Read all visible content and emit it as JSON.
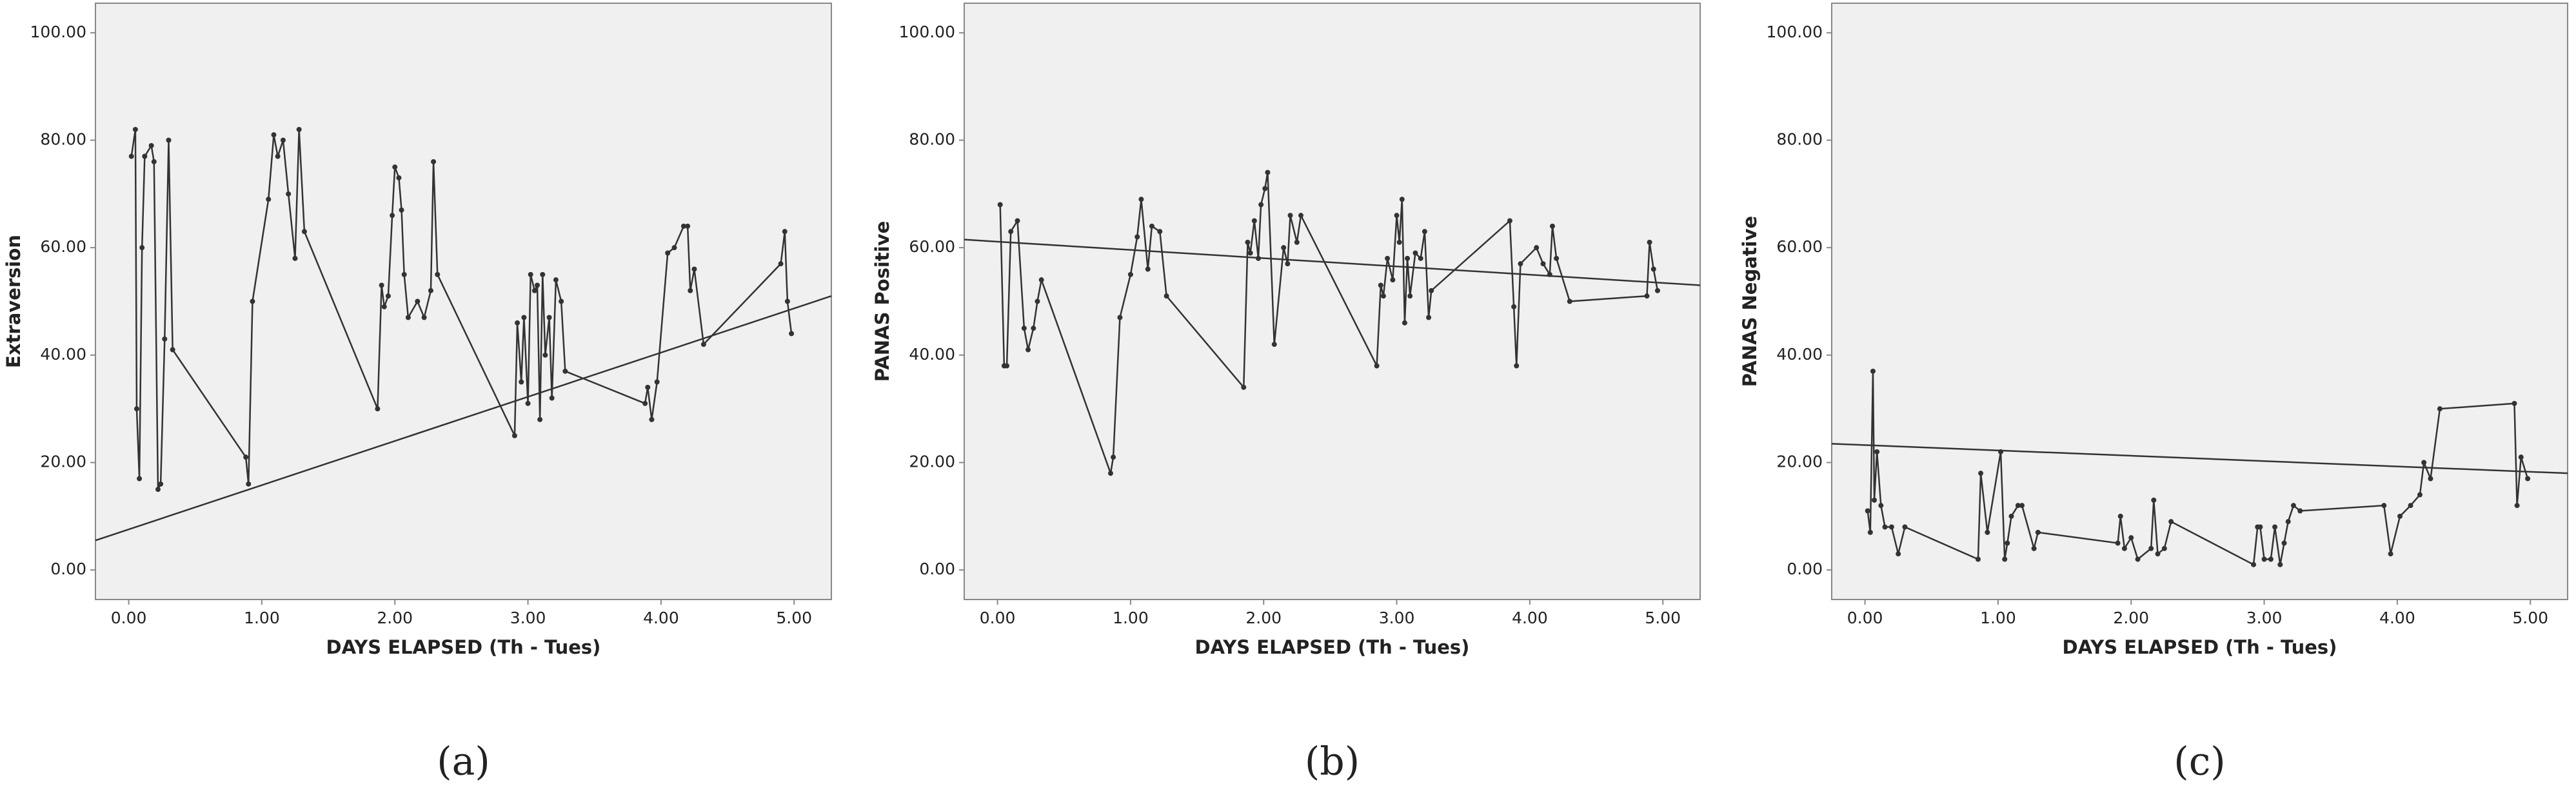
{
  "chart_data": [
    {
      "type": "line",
      "label": "(a)",
      "xlabel": "DAYS ELAPSED (Th - Tues)",
      "ylabel": "Extraversion",
      "xlim": [
        -0.25,
        5.28
      ],
      "ylim": [
        -5.5,
        105.5
      ],
      "xticks": [
        {
          "value": 0,
          "label": "0.00"
        },
        {
          "value": 1,
          "label": "1.00"
        },
        {
          "value": 2,
          "label": "2.00"
        },
        {
          "value": 3,
          "label": "3.00"
        },
        {
          "value": 4,
          "label": "4.00"
        },
        {
          "value": 5,
          "label": "5.00"
        }
      ],
      "yticks": [
        {
          "value": 0,
          "label": "0.00"
        },
        {
          "value": 20,
          "label": "20.00"
        },
        {
          "value": 40,
          "label": "40.00"
        },
        {
          "value": 60,
          "label": "60.00"
        },
        {
          "value": 80,
          "label": "80.00"
        },
        {
          "value": 100,
          "label": "100.00"
        }
      ],
      "color": "#333333",
      "x": [
        0.02,
        0.05,
        0.06,
        0.08,
        0.1,
        0.12,
        0.17,
        0.19,
        0.22,
        0.24,
        0.27,
        0.3,
        0.33,
        0.88,
        0.9,
        0.93,
        1.05,
        1.09,
        1.12,
        1.16,
        1.2,
        1.25,
        1.28,
        1.32,
        1.87,
        1.9,
        1.92,
        1.95,
        1.98,
        2.0,
        2.03,
        2.05,
        2.07,
        2.1,
        2.17,
        2.22,
        2.27,
        2.29,
        2.32,
        2.9,
        2.92,
        2.95,
        2.97,
        3.0,
        3.02,
        3.05,
        3.07,
        3.09,
        3.11,
        3.13,
        3.16,
        3.18,
        3.21,
        3.25,
        3.28,
        3.88,
        3.9,
        3.93,
        3.97,
        4.05,
        4.1,
        4.17,
        4.2,
        4.22,
        4.25,
        4.32,
        4.9,
        4.93,
        4.95,
        4.98
      ],
      "values": [
        77,
        82,
        30,
        17,
        60,
        77,
        79,
        76,
        15,
        16,
        43,
        80,
        41,
        21,
        16,
        50,
        69,
        81,
        77,
        80,
        70,
        58,
        82,
        63,
        30,
        53,
        49,
        51,
        66,
        75,
        73,
        67,
        55,
        47,
        50,
        47,
        52,
        76,
        55,
        25,
        46,
        35,
        47,
        31,
        55,
        52,
        53,
        28,
        55,
        40,
        47,
        32,
        54,
        50,
        37,
        31,
        34,
        28,
        35,
        59,
        60,
        64,
        64,
        52,
        56,
        42,
        57,
        63,
        50,
        44
      ],
      "trend": {
        "x": [
          -0.25,
          5.28
        ],
        "values": [
          5.5,
          51
        ]
      }
    },
    {
      "type": "line",
      "label": "(b)",
      "xlabel": "DAYS ELAPSED (Th - Tues)",
      "ylabel": "PANAS Positive",
      "xlim": [
        -0.25,
        5.28
      ],
      "ylim": [
        -5.5,
        105.5
      ],
      "xticks": [
        {
          "value": 0,
          "label": "0.00"
        },
        {
          "value": 1,
          "label": "1.00"
        },
        {
          "value": 2,
          "label": "2.00"
        },
        {
          "value": 3,
          "label": "3.00"
        },
        {
          "value": 4,
          "label": "4.00"
        },
        {
          "value": 5,
          "label": "5.00"
        }
      ],
      "yticks": [
        {
          "value": 0,
          "label": "0.00"
        },
        {
          "value": 20,
          "label": "20.00"
        },
        {
          "value": 40,
          "label": "40.00"
        },
        {
          "value": 60,
          "label": "60.00"
        },
        {
          "value": 80,
          "label": "80.00"
        },
        {
          "value": 100,
          "label": "100.00"
        }
      ],
      "color": "#333333",
      "x": [
        0.02,
        0.05,
        0.07,
        0.1,
        0.15,
        0.2,
        0.23,
        0.27,
        0.3,
        0.33,
        0.85,
        0.87,
        0.92,
        1.0,
        1.05,
        1.08,
        1.13,
        1.16,
        1.22,
        1.27,
        1.85,
        1.88,
        1.9,
        1.93,
        1.96,
        1.98,
        2.01,
        2.03,
        2.08,
        2.15,
        2.18,
        2.2,
        2.25,
        2.28,
        2.85,
        2.88,
        2.9,
        2.93,
        2.97,
        3.0,
        3.02,
        3.04,
        3.06,
        3.08,
        3.1,
        3.14,
        3.18,
        3.21,
        3.24,
        3.26,
        3.85,
        3.88,
        3.9,
        3.93,
        4.05,
        4.1,
        4.15,
        4.17,
        4.2,
        4.3,
        4.88,
        4.9,
        4.93,
        4.96
      ],
      "values": [
        68,
        38,
        38,
        63,
        65,
        45,
        41,
        45,
        50,
        54,
        18,
        21,
        47,
        55,
        62,
        69,
        56,
        64,
        63,
        51,
        34,
        61,
        59,
        65,
        58,
        68,
        71,
        74,
        42,
        60,
        57,
        66,
        61,
        66,
        38,
        53,
        51,
        58,
        54,
        66,
        61,
        69,
        46,
        58,
        51,
        59,
        58,
        63,
        47,
        52,
        65,
        49,
        38,
        57,
        60,
        57,
        55,
        64,
        58,
        50,
        51,
        61,
        56,
        52
      ],
      "trend": {
        "x": [
          -0.25,
          5.28
        ],
        "values": [
          61.5,
          53
        ]
      }
    },
    {
      "type": "line",
      "label": "(c)",
      "xlabel": "DAYS ELAPSED (Th - Tues)",
      "ylabel": "PANAS Negative",
      "xlim": [
        -0.25,
        5.28
      ],
      "ylim": [
        -5.5,
        105.5
      ],
      "xticks": [
        {
          "value": 0,
          "label": "0.00"
        },
        {
          "value": 1,
          "label": "1.00"
        },
        {
          "value": 2,
          "label": "2.00"
        },
        {
          "value": 3,
          "label": "3.00"
        },
        {
          "value": 4,
          "label": "4.00"
        },
        {
          "value": 5,
          "label": "5.00"
        }
      ],
      "yticks": [
        {
          "value": 0,
          "label": "0.00"
        },
        {
          "value": 20,
          "label": "20.00"
        },
        {
          "value": 40,
          "label": "40.00"
        },
        {
          "value": 60,
          "label": "60.00"
        },
        {
          "value": 80,
          "label": "80.00"
        },
        {
          "value": 100,
          "label": "100.00"
        }
      ],
      "color": "#333333",
      "x": [
        0.02,
        0.04,
        0.06,
        0.07,
        0.09,
        0.12,
        0.15,
        0.2,
        0.25,
        0.3,
        0.85,
        0.87,
        0.92,
        1.02,
        1.05,
        1.07,
        1.1,
        1.15,
        1.18,
        1.27,
        1.3,
        1.9,
        1.92,
        1.95,
        2.0,
        2.05,
        2.15,
        2.17,
        2.2,
        2.25,
        2.3,
        2.92,
        2.95,
        2.97,
        3.0,
        3.05,
        3.08,
        3.12,
        3.15,
        3.18,
        3.22,
        3.27,
        3.9,
        3.95,
        4.02,
        4.1,
        4.17,
        4.2,
        4.25,
        4.32,
        4.88,
        4.9,
        4.93,
        4.98
      ],
      "values": [
        11,
        7,
        37,
        13,
        22,
        12,
        8,
        8,
        3,
        8,
        2,
        18,
        7,
        22,
        2,
        5,
        10,
        12,
        12,
        4,
        7,
        5,
        10,
        4,
        6,
        2,
        4,
        13,
        3,
        4,
        9,
        1,
        8,
        8,
        2,
        2,
        8,
        1,
        5,
        9,
        12,
        11,
        12,
        3,
        10,
        12,
        14,
        20,
        17,
        30,
        31,
        12,
        21,
        17
      ],
      "trend": {
        "x": [
          -0.25,
          5.28
        ],
        "values": [
          23.5,
          18
        ]
      }
    }
  ]
}
